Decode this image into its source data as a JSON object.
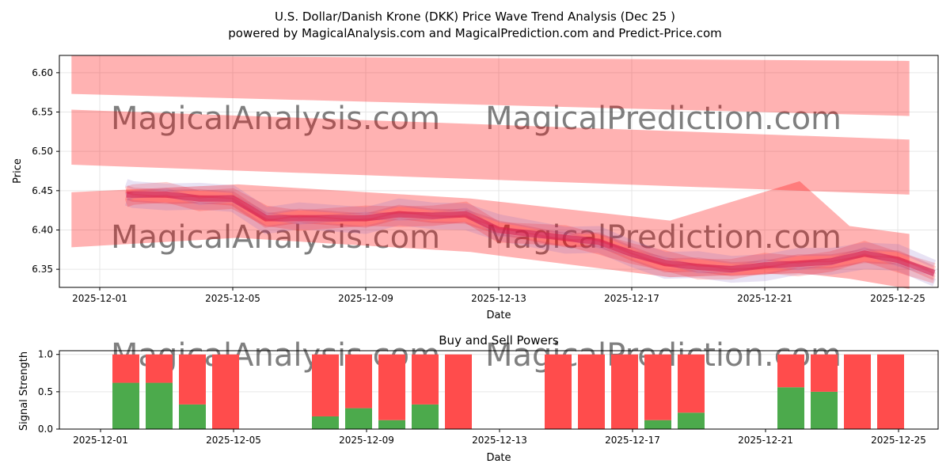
{
  "title": "U.S. Dollar/Danish Krone (DKK) Price Wave Trend Analysis (Dec 25 )",
  "subtitle": "powered by MagicalAnalysis.com and MagicalPrediction.com and Predict-Price.com",
  "watermarks": [
    "MagicalAnalysis.com",
    "MagicalPrediction.com"
  ],
  "colors": {
    "band": "#ff0000",
    "wave": "#d62050",
    "buy": "#4caa4c",
    "sell": "#ff4c4c"
  },
  "chart_data": [
    {
      "type": "area",
      "title": "",
      "xlabel": "Date",
      "ylabel": "Price",
      "ylim": [
        6.327,
        6.622
      ],
      "yticks": [
        "6.35",
        "6.40",
        "6.45",
        "6.50",
        "6.55",
        "6.60"
      ],
      "xticks": [
        "2025-12-01",
        "2025-12-05",
        "2025-12-09",
        "2025-12-13",
        "2025-12-17",
        "2025-12-21",
        "2025-12-25"
      ],
      "grid": true,
      "trend_x_days": [
        0.8,
        1,
        2,
        3,
        4,
        5,
        6,
        7,
        8,
        9,
        10,
        11,
        12,
        13,
        14,
        15,
        16,
        17,
        18,
        19,
        20,
        21,
        22,
        23,
        24,
        25.1
      ],
      "trend": [
        6.445,
        6.445,
        6.445,
        6.44,
        6.44,
        6.415,
        6.415,
        6.415,
        6.415,
        6.42,
        6.418,
        6.42,
        6.4,
        6.395,
        6.39,
        6.385,
        6.37,
        6.358,
        6.353,
        6.35,
        6.355,
        6.357,
        6.36,
        6.37,
        6.362,
        6.345
      ],
      "bands": [
        {
          "x_days": [
            0,
            25.2
          ],
          "upper": [
            6.622,
            6.615
          ],
          "lower": [
            6.573,
            6.545
          ]
        },
        {
          "x_days": [
            0,
            25.2
          ],
          "upper": [
            6.553,
            6.515
          ],
          "lower": [
            6.483,
            6.445
          ]
        },
        {
          "x_days": [
            0,
            5,
            12,
            18,
            21.9,
            23.4,
            25.2
          ],
          "upper": [
            6.448,
            6.458,
            6.44,
            6.412,
            6.462,
            6.405,
            6.395
          ],
          "lower": [
            6.378,
            6.39,
            6.372,
            6.34,
            6.345,
            6.338,
            6.325
          ]
        }
      ]
    },
    {
      "type": "bar",
      "title": "Buy and Sell Powers",
      "xlabel": "Date",
      "ylabel": "Signal Strength",
      "ylim": [
        0,
        1.05
      ],
      "yticks": [
        "0.0",
        "0.5",
        "1.0"
      ],
      "xticks": [
        "2025-12-01",
        "2025-12-05",
        "2025-12-09",
        "2025-12-13",
        "2025-12-17",
        "2025-12-21",
        "2025-12-25"
      ],
      "categories": [
        "2025-12-02",
        "2025-12-03",
        "2025-12-04",
        "2025-12-05",
        "2025-12-08",
        "2025-12-09",
        "2025-12-10",
        "2025-12-11",
        "2025-12-12",
        "2025-12-15",
        "2025-12-16",
        "2025-12-17",
        "2025-12-18",
        "2025-12-19",
        "2025-12-22",
        "2025-12-23",
        "2025-12-24",
        "2025-12-25"
      ],
      "day_index": [
        1,
        2,
        3,
        4,
        7,
        8,
        9,
        10,
        11,
        14,
        15,
        16,
        17,
        18,
        21,
        22,
        23,
        24
      ],
      "series": [
        {
          "name": "Buy",
          "values": [
            0.62,
            0.62,
            0.33,
            0,
            0.17,
            0.28,
            0.12,
            0.33,
            0,
            0,
            0,
            0,
            0.12,
            0.22,
            0.56,
            0.5,
            0,
            0
          ]
        },
        {
          "name": "Sell",
          "values": [
            0.38,
            0.38,
            0.67,
            1,
            0.83,
            0.72,
            0.88,
            0.67,
            1,
            1,
            1,
            1,
            0.88,
            0.78,
            0.44,
            0.5,
            1,
            1
          ]
        }
      ]
    }
  ]
}
